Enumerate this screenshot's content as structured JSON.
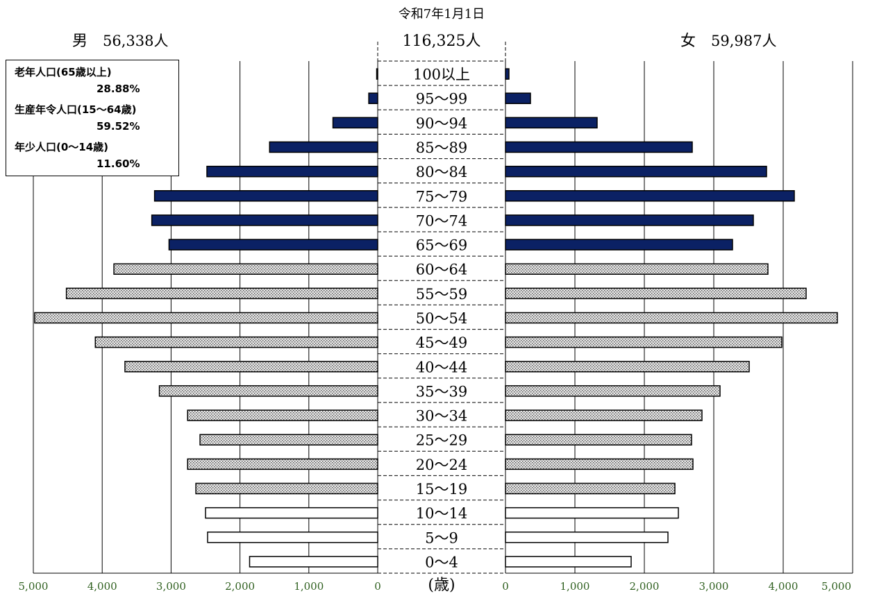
{
  "chart_data": {
    "type": "bar",
    "title": "令和7年1月1日",
    "total_label": "116,325人",
    "male": {
      "label": "男",
      "total": "56,338人"
    },
    "female": {
      "label": "女",
      "total": "59,987人"
    },
    "center_axis_label": "(歳)",
    "categories": [
      "100以上",
      "95～99",
      "90～94",
      "85～89",
      "80～84",
      "75～79",
      "70～74",
      "65～69",
      "60～64",
      "55～59",
      "50～54",
      "45～49",
      "40～44",
      "35～39",
      "30～34",
      "25～29",
      "20～24",
      "15～19",
      "10～14",
      "5～9",
      "0～4"
    ],
    "series": [
      {
        "name": "男",
        "values": [
          15,
          130,
          650,
          1570,
          2480,
          3240,
          3280,
          3030,
          3830,
          4520,
          4980,
          4100,
          3670,
          3170,
          2760,
          2580,
          2760,
          2640,
          2500,
          2470,
          1860
        ]
      },
      {
        "name": "女",
        "values": [
          50,
          360,
          1320,
          2690,
          3760,
          4160,
          3570,
          3270,
          3780,
          4330,
          4780,
          3980,
          3510,
          3090,
          2830,
          2680,
          2700,
          2440,
          2490,
          2340,
          1810
        ]
      }
    ],
    "group_of_category": [
      "elderly",
      "elderly",
      "elderly",
      "elderly",
      "elderly",
      "elderly",
      "elderly",
      "elderly",
      "working",
      "working",
      "working",
      "working",
      "working",
      "working",
      "working",
      "working",
      "working",
      "working",
      "young",
      "young",
      "young"
    ],
    "xlim": [
      0,
      5000
    ],
    "male_ticks": [
      "5,000",
      "4,000",
      "3,000",
      "2,000",
      "1,000",
      "0"
    ],
    "female_ticks": [
      "0",
      "1,000",
      "2,000",
      "3,000",
      "4,000",
      "5,000"
    ],
    "grid": true,
    "legend": {
      "position": "top-left",
      "items": [
        {
          "label": "老年人口(65歳以上)",
          "value": "28.88%"
        },
        {
          "label": "生産年令人口(15～64歳)",
          "value": "59.52%"
        },
        {
          "label": "年少人口(0～14歳)",
          "value": "11.60%"
        }
      ]
    },
    "colors": {
      "elderly": "#0b2164",
      "working": "#d8d8d8",
      "young": "#ffffff",
      "tick_text": "#2e5f1e"
    }
  }
}
